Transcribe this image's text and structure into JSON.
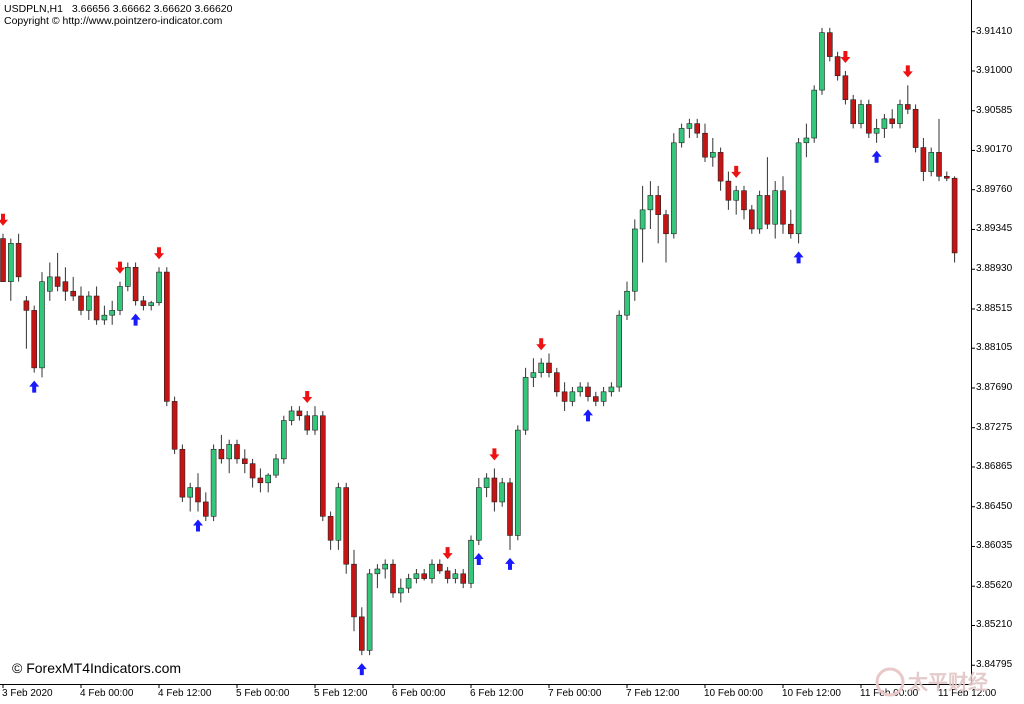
{
  "header": {
    "symbol": "USDPLN,H1",
    "ohlc": [
      "3.66656",
      "3.66662",
      "3.66620",
      "3.66620"
    ],
    "copyright": "Copyright © http://www.pointzero-indicator.com"
  },
  "watermark": "© ForexMT4Indicators.com",
  "logo_text": "太平财经",
  "colors": {
    "bull": "#34c77b",
    "bear": "#c41414",
    "wick": "#333333",
    "arrow_up": "#1a1aff",
    "arrow_down": "#ee1111",
    "axis": "#000000"
  },
  "price_axis": [
    "3.91410",
    "3.91000",
    "3.90585",
    "3.90170",
    "3.89760",
    "3.89345",
    "3.88930",
    "3.88515",
    "3.88105",
    "3.87690",
    "3.87275",
    "3.86865",
    "3.86450",
    "3.86035",
    "3.85620",
    "3.85210",
    "3.84795"
  ],
  "time_axis": [
    "3 Feb 2020",
    "4 Feb 00:00",
    "4 Feb 12:00",
    "5 Feb 00:00",
    "5 Feb 12:00",
    "6 Feb 00:00",
    "6 Feb 12:00",
    "7 Feb 00:00",
    "7 Feb 12:00",
    "10 Feb 00:00",
    "10 Feb 12:00",
    "11 Feb 00:00",
    "11 Feb 12:00"
  ],
  "chart_data": {
    "type": "candlestick",
    "symbol": "USDPLN",
    "timeframe": "H1",
    "y_range": [
      3.8462,
      3.9172
    ],
    "candles_approx": [
      [
        3.8925,
        3.893,
        3.888,
        3.888
      ],
      [
        3.888,
        3.8925,
        3.886,
        3.892
      ],
      [
        3.892,
        3.893,
        3.888,
        3.8885
      ],
      [
        3.886,
        3.8865,
        3.881,
        3.885
      ],
      [
        3.885,
        3.8855,
        3.8785,
        3.879
      ],
      [
        3.879,
        3.889,
        3.878,
        3.888
      ],
      [
        3.887,
        3.89,
        3.886,
        3.8885
      ],
      [
        3.8885,
        3.891,
        3.887,
        3.8875
      ],
      [
        3.888,
        3.8895,
        3.886,
        3.887
      ],
      [
        3.887,
        3.8885,
        3.886,
        3.8865
      ],
      [
        3.8865,
        3.8875,
        3.8845,
        3.885
      ],
      [
        3.885,
        3.887,
        3.884,
        3.8865
      ],
      [
        3.8865,
        3.8875,
        3.8835,
        3.884
      ],
      [
        3.884,
        3.8855,
        3.8835,
        3.8845
      ],
      [
        3.8845,
        3.886,
        3.8835,
        3.885
      ],
      [
        3.885,
        3.888,
        3.8845,
        3.8875
      ],
      [
        3.8875,
        3.89,
        3.887,
        3.8895
      ],
      [
        3.8895,
        3.89,
        3.8855,
        3.886
      ],
      [
        3.886,
        3.8865,
        3.885,
        3.8855
      ],
      [
        3.8855,
        3.886,
        3.885,
        3.8858
      ],
      [
        3.8858,
        3.8895,
        3.8855,
        3.889
      ],
      [
        3.889,
        3.8895,
        3.875,
        3.8755
      ],
      [
        3.8755,
        3.876,
        3.87,
        3.8705
      ],
      [
        3.8705,
        3.871,
        3.865,
        3.8655
      ],
      [
        3.8655,
        3.867,
        3.864,
        3.8665
      ],
      [
        3.8665,
        3.868,
        3.864,
        3.865
      ],
      [
        3.865,
        3.866,
        3.863,
        3.8635
      ],
      [
        3.8635,
        3.871,
        3.863,
        3.8705
      ],
      [
        3.8705,
        3.872,
        3.869,
        3.8695
      ],
      [
        3.8695,
        3.8715,
        3.868,
        3.871
      ],
      [
        3.871,
        3.8715,
        3.869,
        3.8695
      ],
      [
        3.8695,
        3.8705,
        3.868,
        3.869
      ],
      [
        3.869,
        3.8695,
        3.8665,
        3.8675
      ],
      [
        3.8675,
        3.8685,
        3.866,
        3.867
      ],
      [
        3.867,
        3.868,
        3.866,
        3.8678
      ],
      [
        3.8678,
        3.87,
        3.8675,
        3.8695
      ],
      [
        3.8695,
        3.874,
        3.869,
        3.8735
      ],
      [
        3.8735,
        3.875,
        3.873,
        3.8745
      ],
      [
        3.8745,
        3.875,
        3.8735,
        3.874
      ],
      [
        3.874,
        3.8745,
        3.872,
        3.8725
      ],
      [
        3.8725,
        3.875,
        3.872,
        3.874
      ],
      [
        3.874,
        3.8745,
        3.863,
        3.8635
      ],
      [
        3.8635,
        3.864,
        3.86,
        3.861
      ],
      [
        3.861,
        3.867,
        3.86,
        3.8665
      ],
      [
        3.8665,
        3.867,
        3.8575,
        3.8585
      ],
      [
        3.8585,
        3.86,
        3.8515,
        3.853
      ],
      [
        3.853,
        3.854,
        3.849,
        3.8495
      ],
      [
        3.8495,
        3.858,
        3.849,
        3.8575
      ],
      [
        3.8575,
        3.8585,
        3.856,
        3.858
      ],
      [
        3.858,
        3.859,
        3.857,
        3.8585
      ],
      [
        3.8585,
        3.859,
        3.855,
        3.8555
      ],
      [
        3.8555,
        3.857,
        3.8545,
        3.856
      ],
      [
        3.856,
        3.8575,
        3.8555,
        3.857
      ],
      [
        3.857,
        3.858,
        3.8565,
        3.8575
      ],
      [
        3.8575,
        3.858,
        3.8568,
        3.857
      ],
      [
        3.857,
        3.859,
        3.8565,
        3.8585
      ],
      [
        3.8585,
        3.859,
        3.8575,
        3.8578
      ],
      [
        3.8578,
        3.8582,
        3.8565,
        3.857
      ],
      [
        3.857,
        3.858,
        3.8565,
        3.8575
      ],
      [
        3.8575,
        3.858,
        3.856,
        3.8565
      ],
      [
        3.8565,
        3.8615,
        3.856,
        3.861
      ],
      [
        3.861,
        3.8675,
        3.8605,
        3.8665
      ],
      [
        3.8665,
        3.868,
        3.8655,
        3.8675
      ],
      [
        3.8675,
        3.8685,
        3.864,
        3.865
      ],
      [
        3.865,
        3.8675,
        3.8645,
        3.867
      ],
      [
        3.867,
        3.8675,
        3.86,
        3.8615
      ],
      [
        3.8615,
        3.873,
        3.861,
        3.8725
      ],
      [
        3.8725,
        3.879,
        3.872,
        3.878
      ],
      [
        3.878,
        3.88,
        3.877,
        3.8785
      ],
      [
        3.8785,
        3.88,
        3.878,
        3.8795
      ],
      [
        3.8795,
        3.8805,
        3.878,
        3.8785
      ],
      [
        3.8785,
        3.879,
        3.876,
        3.8765
      ],
      [
        3.8765,
        3.8775,
        3.8745,
        3.8755
      ],
      [
        3.8755,
        3.877,
        3.875,
        3.8765
      ],
      [
        3.8765,
        3.8775,
        3.876,
        3.877
      ],
      [
        3.877,
        3.8775,
        3.8755,
        3.876
      ],
      [
        3.876,
        3.8765,
        3.875,
        3.8755
      ],
      [
        3.8755,
        3.877,
        3.875,
        3.8765
      ],
      [
        3.8765,
        3.8775,
        3.876,
        3.877
      ],
      [
        3.877,
        3.885,
        3.8765,
        3.8845
      ],
      [
        3.8845,
        3.888,
        3.884,
        3.887
      ],
      [
        3.887,
        3.8945,
        3.886,
        3.8935
      ],
      [
        3.8935,
        3.898,
        3.89,
        3.8955
      ],
      [
        3.8955,
        3.8985,
        3.8935,
        3.897
      ],
      [
        3.897,
        3.898,
        3.892,
        3.895
      ],
      [
        3.895,
        3.8955,
        3.89,
        3.893
      ],
      [
        3.893,
        3.9035,
        3.8925,
        3.9025
      ],
      [
        3.9025,
        3.9045,
        3.902,
        3.904
      ],
      [
        3.904,
        3.905,
        3.903,
        3.9045
      ],
      [
        3.9045,
        3.905,
        3.903,
        3.9035
      ],
      [
        3.9035,
        3.9045,
        3.9005,
        3.901
      ],
      [
        3.901,
        3.903,
        3.9,
        3.9015
      ],
      [
        3.9015,
        3.902,
        3.8975,
        3.8985
      ],
      [
        3.8985,
        3.8995,
        3.8955,
        3.8965
      ],
      [
        3.8965,
        3.898,
        3.895,
        3.8975
      ],
      [
        3.8975,
        3.898,
        3.8945,
        3.8955
      ],
      [
        3.8955,
        3.896,
        3.893,
        3.8935
      ],
      [
        3.8935,
        3.8975,
        3.893,
        3.897
      ],
      [
        3.897,
        3.901,
        3.8935,
        3.894
      ],
      [
        3.894,
        3.8985,
        3.8925,
        3.8975
      ],
      [
        3.8975,
        3.899,
        3.893,
        3.894
      ],
      [
        3.894,
        3.8955,
        3.8925,
        3.893
      ],
      [
        3.893,
        3.903,
        3.892,
        3.9025
      ],
      [
        3.9025,
        3.9045,
        3.901,
        3.903
      ],
      [
        3.903,
        3.9085,
        3.9025,
        3.908
      ],
      [
        3.908,
        3.9145,
        3.9075,
        3.914
      ],
      [
        3.914,
        3.9145,
        3.911,
        3.9115
      ],
      [
        3.9115,
        3.912,
        3.909,
        3.9095
      ],
      [
        3.9095,
        3.91,
        3.9065,
        3.907
      ],
      [
        3.907,
        3.9075,
        3.904,
        3.9045
      ],
      [
        3.9045,
        3.907,
        3.904,
        3.9065
      ],
      [
        3.9065,
        3.907,
        3.903,
        3.9035
      ],
      [
        3.9035,
        3.905,
        3.9025,
        3.904
      ],
      [
        3.904,
        3.9055,
        3.903,
        3.905
      ],
      [
        3.905,
        3.906,
        3.904,
        3.9045
      ],
      [
        3.9045,
        3.907,
        3.904,
        3.9065
      ],
      [
        3.9065,
        3.9085,
        3.9055,
        3.906
      ],
      [
        3.906,
        3.9065,
        3.9015,
        3.902
      ],
      [
        3.902,
        3.903,
        3.8985,
        3.8995
      ],
      [
        3.8995,
        3.902,
        3.899,
        3.9015
      ],
      [
        3.9015,
        3.905,
        3.8985,
        3.899
      ],
      [
        3.899,
        3.8995,
        3.8985,
        3.8988
      ],
      [
        3.8988,
        3.899,
        3.89,
        3.891
      ]
    ],
    "note": "candles are [open, high, low, close] in chart price units, estimated from the axis scale",
    "signals_up": [
      4,
      17,
      25,
      46,
      61,
      65,
      75,
      102,
      112
    ],
    "signals_down": [
      0,
      15,
      20,
      39,
      57,
      63,
      69,
      94,
      108,
      116
    ]
  }
}
